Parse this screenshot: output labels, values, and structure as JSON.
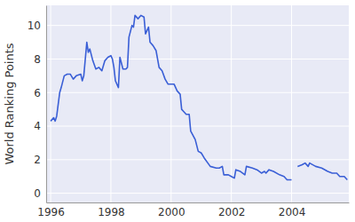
{
  "chart_data": {
    "type": "line",
    "y_label": "World Ranking Points",
    "color": "#3a5fd6",
    "grid": true,
    "xlim": [
      1995.85,
      2005.9
    ],
    "xticks": [
      1996,
      1998,
      2000,
      2002,
      2004
    ],
    "ylim": [
      -0.55,
      11.2
    ],
    "yticks": [
      0,
      2,
      4,
      6,
      8,
      10
    ],
    "x": [
      1996.0,
      1996.1,
      1996.15,
      1996.2,
      1996.3,
      1996.35,
      1996.45,
      1996.55,
      1996.65,
      1996.75,
      1996.85,
      1997.0,
      1997.05,
      1997.1,
      1997.2,
      1997.25,
      1997.3,
      1997.4,
      1997.5,
      1997.6,
      1997.7,
      1997.8,
      1997.9,
      1998.0,
      1998.05,
      1998.1,
      1998.15,
      1998.25,
      1998.3,
      1998.4,
      1998.5,
      1998.55,
      1998.6,
      1998.7,
      1998.75,
      1998.8,
      1998.9,
      1999.0,
      1999.1,
      1999.15,
      1999.25,
      1999.3,
      1999.4,
      1999.5,
      1999.6,
      1999.7,
      1999.8,
      1999.9,
      2000.1,
      2000.2,
      2000.3,
      2000.35,
      2000.4,
      2000.5,
      2000.6,
      2000.65,
      2000.8,
      2000.9,
      2001.0,
      2001.1,
      2001.3,
      2001.5,
      2001.6,
      2001.7,
      2001.75,
      2001.9,
      2002.0,
      2002.1,
      2002.15,
      2002.3,
      2002.45,
      2002.5,
      2002.7,
      2002.85,
      2003.0,
      2003.1,
      2003.15,
      2003.25,
      2003.4,
      2003.6,
      2003.75,
      2003.85,
      2004.0,
      2004.1,
      2004.2,
      2004.35,
      2004.45,
      2004.55,
      2004.6,
      2004.8,
      2005.0,
      2005.2,
      2005.35,
      2005.5,
      2005.6,
      2005.75,
      2005.85
    ],
    "values": [
      4.3,
      4.5,
      4.3,
      4.6,
      6.0,
      6.3,
      7.0,
      7.1,
      7.1,
      6.8,
      7.0,
      7.1,
      6.7,
      7.0,
      9.0,
      8.4,
      8.6,
      7.9,
      7.4,
      7.5,
      7.3,
      7.9,
      8.1,
      8.2,
      8.0,
      7.5,
      6.7,
      6.3,
      8.1,
      7.4,
      7.4,
      7.5,
      9.3,
      10.0,
      9.9,
      10.6,
      10.4,
      10.6,
      10.5,
      9.5,
      9.9,
      9.0,
      8.8,
      8.5,
      7.5,
      7.3,
      6.8,
      6.5,
      6.5,
      6.1,
      5.9,
      5.0,
      4.9,
      4.7,
      4.7,
      3.7,
      3.2,
      2.5,
      2.4,
      2.1,
      1.6,
      1.5,
      1.5,
      1.6,
      1.1,
      1.1,
      1.0,
      0.9,
      1.4,
      1.3,
      1.1,
      1.6,
      1.5,
      1.4,
      1.2,
      1.3,
      1.2,
      1.4,
      1.3,
      1.1,
      1.0,
      0.8,
      0.8,
      null,
      1.6,
      1.7,
      1.8,
      1.6,
      1.8,
      1.6,
      1.5,
      1.3,
      1.2,
      1.2,
      1.0,
      1.0,
      0.8
    ]
  }
}
